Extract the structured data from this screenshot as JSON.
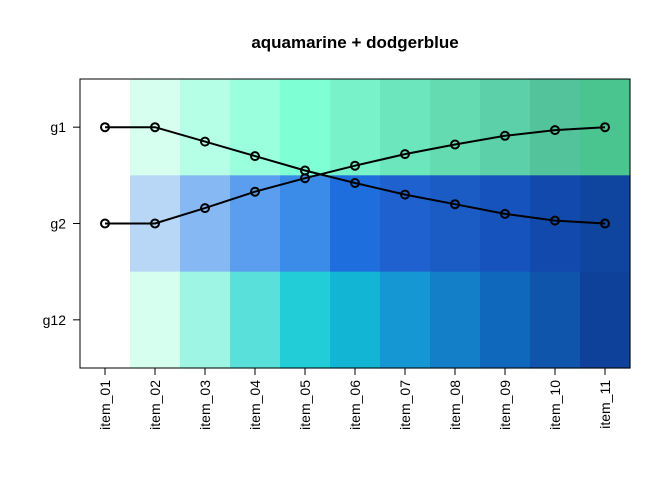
{
  "chart_data": {
    "type": "heatmap",
    "title": "aquamarine + dodgerblue",
    "xlabel": "",
    "ylabel": "",
    "categories": [
      "item_01",
      "item_02",
      "item_03",
      "item_04",
      "item_05",
      "item_06",
      "item_07",
      "item_08",
      "item_09",
      "item_10",
      "item_11"
    ],
    "rows": [
      "g1",
      "g2",
      "g12"
    ],
    "cell_colors": {
      "g1": [
        "#ffffff",
        "#d6fff0",
        "#b4ffe6",
        "#9affdd",
        "#7fffd4",
        "#77f2c9",
        "#6be6bd",
        "#64dbb1",
        "#5cd0a8",
        "#53c39b",
        "#4ac590"
      ],
      "g2": [
        "#ffffff",
        "#b8d6f6",
        "#86b8f4",
        "#5b9ef0",
        "#3b8ce8",
        "#1e6ede",
        "#1f62cf",
        "#1a5bc4",
        "#1753bc",
        "#1249ad",
        "#0f449f"
      ],
      "g12": [
        "#ffffff",
        "#d6fff0",
        "#9ef5e4",
        "#5ae0db",
        "#22cdd8",
        "#12b6d4",
        "#1497d2",
        "#127fc8",
        "#0f68bc",
        "#0e55ab",
        "#0e429a"
      ]
    },
    "series": [
      {
        "row": "g1",
        "values": [
          1.0,
          1.0,
          0.85,
          0.7,
          0.55,
          0.42,
          0.3,
          0.2,
          0.1,
          0.03,
          0.0
        ]
      },
      {
        "row": "g2",
        "values": [
          0.0,
          0.0,
          0.16,
          0.33,
          0.47,
          0.6,
          0.72,
          0.82,
          0.91,
          0.97,
          1.0
        ]
      }
    ],
    "xlim": [
      0.5,
      11.5
    ],
    "ylim": [
      0.5,
      3.5
    ],
    "grid": false,
    "legend": "none"
  }
}
